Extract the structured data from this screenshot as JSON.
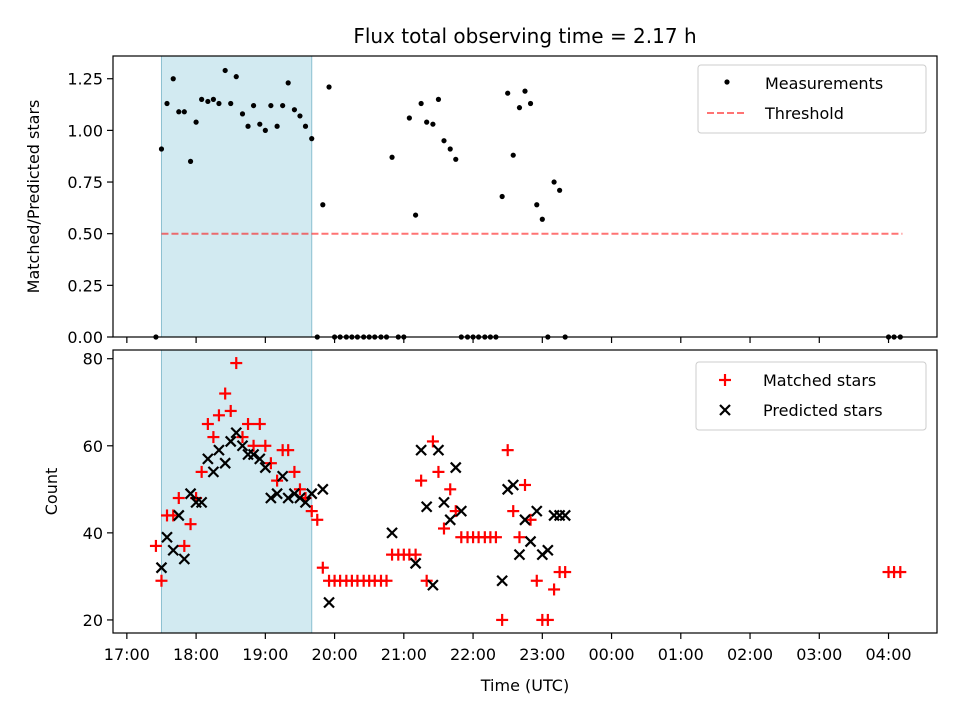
{
  "chart_data": [
    {
      "type": "scatter",
      "title": "Flux total observing time = 2.17 h",
      "xlabel": "",
      "ylabel": "Matched/Predicted stars",
      "xlim": [
        16.8,
        28.7
      ],
      "ylim": [
        0,
        1.36
      ],
      "yticks": [
        0.0,
        0.25,
        0.5,
        0.75,
        1.0,
        1.25
      ],
      "ytick_labels": [
        "0.00",
        "0.25",
        "0.50",
        "0.75",
        "1.00",
        "1.25"
      ],
      "shaded_span": [
        17.5,
        19.67
      ],
      "legend": [
        "Measurements",
        "Threshold"
      ],
      "threshold": {
        "name": "Threshold",
        "value": 0.5,
        "x_range": [
          17.5,
          28.2
        ]
      },
      "series": [
        {
          "name": "Measurements",
          "x": [
            17.42,
            17.5,
            17.58,
            17.67,
            17.75,
            17.83,
            17.92,
            18.0,
            18.08,
            18.17,
            18.25,
            18.33,
            18.42,
            18.5,
            18.58,
            18.67,
            18.75,
            18.83,
            18.92,
            19.0,
            19.08,
            19.17,
            19.25,
            19.33,
            19.42,
            19.5,
            19.58,
            19.67,
            19.75,
            19.83,
            19.92,
            20.0,
            20.08,
            20.17,
            20.25,
            20.33,
            20.42,
            20.5,
            20.58,
            20.67,
            20.75,
            20.83,
            20.92,
            21.0,
            21.08,
            21.17,
            21.25,
            21.33,
            21.42,
            21.5,
            21.58,
            21.67,
            21.75,
            21.83,
            21.92,
            22.0,
            22.08,
            22.17,
            22.25,
            22.33,
            22.42,
            22.5,
            22.58,
            22.67,
            22.75,
            22.83,
            22.92,
            23.0,
            23.08,
            23.17,
            23.25,
            23.33,
            28.0,
            28.08,
            28.17
          ],
          "y": [
            0.0,
            0.91,
            1.13,
            1.25,
            1.09,
            1.09,
            0.85,
            1.04,
            1.15,
            1.14,
            1.15,
            1.13,
            1.29,
            1.13,
            1.26,
            1.08,
            1.02,
            1.12,
            1.03,
            1.0,
            1.12,
            1.02,
            1.12,
            1.23,
            1.1,
            1.07,
            1.02,
            0.96,
            0.0,
            0.64,
            1.21,
            0.0,
            0.0,
            0.0,
            0.0,
            0.0,
            0.0,
            0.0,
            0.0,
            0.0,
            0.0,
            0.87,
            0.0,
            0.0,
            1.06,
            0.59,
            1.13,
            1.04,
            1.03,
            1.15,
            0.95,
            0.91,
            0.86,
            0.0,
            0.0,
            0.0,
            0.0,
            0.0,
            0.0,
            0.0,
            0.68,
            1.18,
            0.88,
            1.11,
            1.19,
            1.13,
            0.64,
            0.57,
            0.0,
            0.75,
            0.71,
            0.0,
            0.0,
            0.0,
            0.0
          ]
        }
      ]
    },
    {
      "type": "scatter",
      "title": "",
      "xlabel": "Time (UTC)",
      "ylabel": "Count",
      "xlim": [
        16.8,
        28.7
      ],
      "ylim": [
        17,
        82
      ],
      "yticks": [
        20,
        40,
        60,
        80
      ],
      "ytick_labels": [
        "20",
        "40",
        "60",
        "80"
      ],
      "xticks": [
        17,
        18,
        19,
        20,
        21,
        22,
        23,
        24,
        25,
        26,
        27,
        28
      ],
      "xtick_labels": [
        "17:00",
        "18:00",
        "19:00",
        "20:00",
        "21:00",
        "22:00",
        "23:00",
        "00:00",
        "01:00",
        "02:00",
        "03:00",
        "04:00"
      ],
      "shaded_span": [
        17.5,
        19.67
      ],
      "legend": [
        "Matched stars",
        "Predicted stars"
      ],
      "series": [
        {
          "name": "Matched stars",
          "color": "#ff0000",
          "marker": "+",
          "x": [
            17.42,
            17.5,
            17.58,
            17.67,
            17.75,
            17.83,
            17.92,
            18.0,
            18.08,
            18.17,
            18.25,
            18.33,
            18.42,
            18.5,
            18.58,
            18.67,
            18.75,
            18.83,
            18.92,
            19.0,
            19.08,
            19.17,
            19.25,
            19.33,
            19.42,
            19.5,
            19.58,
            19.67,
            19.75,
            19.83,
            19.92,
            20.0,
            20.08,
            20.17,
            20.25,
            20.33,
            20.42,
            20.5,
            20.58,
            20.67,
            20.75,
            20.83,
            20.92,
            21.0,
            21.08,
            21.17,
            21.25,
            21.33,
            21.42,
            21.5,
            21.58,
            21.67,
            21.75,
            21.83,
            21.92,
            22.0,
            22.08,
            22.17,
            22.25,
            22.33,
            22.42,
            22.5,
            22.58,
            22.67,
            22.75,
            22.83,
            22.92,
            23.0,
            23.08,
            23.17,
            23.25,
            23.33,
            28.0,
            28.08,
            28.17
          ],
          "y": [
            37,
            29,
            44,
            44,
            48,
            37,
            42,
            48,
            54,
            65,
            62,
            67,
            72,
            68,
            79,
            62,
            65,
            60,
            65,
            60,
            56,
            52,
            59,
            59,
            54,
            50,
            48,
            45,
            43,
            32,
            29,
            29,
            29,
            29,
            29,
            29,
            29,
            29,
            29,
            29,
            29,
            35,
            35,
            35,
            35,
            35,
            52,
            29,
            61,
            54,
            41,
            50,
            45,
            39,
            39,
            39,
            39,
            39,
            39,
            39,
            20,
            59,
            45,
            39,
            51,
            43,
            29,
            20,
            20,
            27,
            31,
            31,
            31,
            31,
            31
          ]
        },
        {
          "name": "Predicted stars",
          "color": "#000000",
          "marker": "x",
          "x": [
            17.5,
            17.58,
            17.67,
            17.75,
            17.83,
            17.92,
            18.0,
            18.08,
            18.17,
            18.25,
            18.33,
            18.42,
            18.5,
            18.58,
            18.67,
            18.75,
            18.83,
            18.92,
            19.0,
            19.08,
            19.17,
            19.25,
            19.33,
            19.42,
            19.5,
            19.58,
            19.67,
            19.83,
            19.92,
            20.83,
            21.17,
            21.25,
            21.33,
            21.42,
            21.5,
            21.58,
            21.67,
            21.75,
            21.83,
            22.42,
            22.5,
            22.58,
            22.67,
            22.75,
            22.83,
            22.92,
            23.0,
            23.08,
            23.17,
            23.25,
            23.33
          ],
          "y": [
            32,
            39,
            36,
            44,
            34,
            49,
            47,
            47,
            57,
            54,
            59,
            56,
            61,
            63,
            60,
            58,
            58,
            57,
            55,
            48,
            49,
            53,
            48,
            49,
            48,
            47,
            49,
            50,
            24,
            40,
            33,
            59,
            46,
            28,
            59,
            47,
            43,
            55,
            45,
            29,
            50,
            51,
            35,
            43,
            38,
            45,
            35,
            36,
            44,
            44,
            44
          ]
        }
      ]
    }
  ],
  "colors": {
    "shade": "#add8e6",
    "threshold": "#ff0000",
    "measurement": "#000000"
  }
}
